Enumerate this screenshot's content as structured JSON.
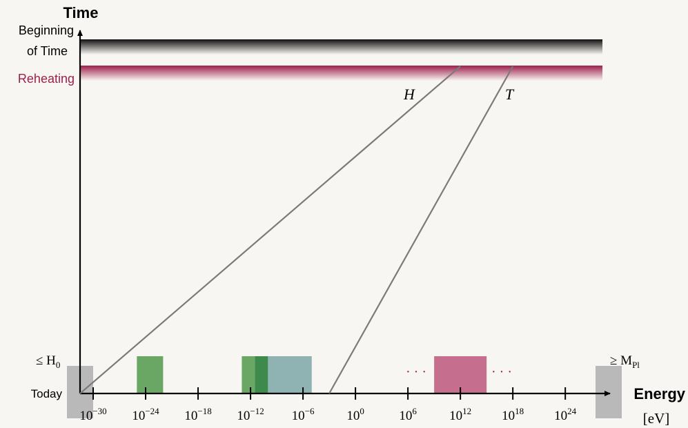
{
  "chart_data": {
    "type": "diagram",
    "y_axis": {
      "title": "Time",
      "labels": {
        "beginning_line1": "Beginning",
        "beginning_line2": "of Time",
        "reheating": "Reheating",
        "today": "Today"
      }
    },
    "x_axis": {
      "title": "Energy",
      "unit": "[eV]",
      "scale": "log10",
      "tick_exponents": [
        -30,
        -24,
        -18,
        -12,
        -6,
        0,
        6,
        12,
        18,
        24
      ],
      "tick_base": "10",
      "min_label": "≤ H",
      "min_label_sub": "0",
      "max_label": "≥ M",
      "max_label_sub": "Pl"
    },
    "curves": [
      {
        "name": "H",
        "from_log10_eV": -30,
        "to_log10_eV": 12,
        "from": "Today",
        "to": "Reheating"
      },
      {
        "name": "T",
        "from_log10_eV": -3,
        "to_log10_eV": 18,
        "from": "Today",
        "to": "Reheating"
      }
    ],
    "bands": [
      {
        "from_log10_eV": -25,
        "to_log10_eV": -22,
        "color": "#6aa765"
      },
      {
        "from_log10_eV": -13,
        "to_log10_eV": -11.5,
        "color": "#6aa765"
      },
      {
        "from_log10_eV": -11.5,
        "to_log10_eV": -10,
        "color": "#3d8a4c"
      },
      {
        "from_log10_eV": -10,
        "to_log10_eV": -5,
        "color": "#8fb3b3"
      },
      {
        "from_log10_eV": 9,
        "to_log10_eV": 15,
        "color": "#c56e8d"
      }
    ],
    "ellipses": [
      "· · ·",
      "· · ·"
    ],
    "colors": {
      "axis": "#000000",
      "curve": "#7a7a7a",
      "beginning_band": "#111111",
      "reheating_band": "#9c1e4b",
      "boundary_box": "#b9b9b9",
      "ellipsis": "#9c1e4b"
    }
  }
}
